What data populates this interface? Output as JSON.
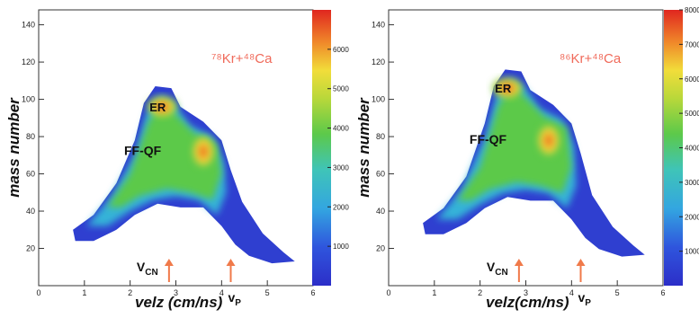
{
  "chart_data": [
    {
      "type": "heatmap",
      "reaction_label": "⁷⁸Kr+⁴⁸Ca",
      "xlabel": "velz (cm/ns)",
      "ylabel": "mass number",
      "xlim": [
        0,
        6
      ],
      "ylim": [
        0,
        148
      ],
      "x_ticks": [
        "0",
        "1",
        "2",
        "3",
        "4",
        "5",
        "6"
      ],
      "y_ticks": [
        "20",
        "40",
        "60",
        "80",
        "100",
        "120",
        "140"
      ],
      "colorbar_ticks": [
        "1000",
        "2000",
        "3000",
        "4000",
        "5000",
        "6000"
      ],
      "colorbar_max": 7000,
      "regions": [
        {
          "label": "ER",
          "x": 2.7,
          "y": 96,
          "peak": 7000
        },
        {
          "label": "FF-QF",
          "x": 3.6,
          "y": 72,
          "peak": 6200
        }
      ],
      "velocity_markers": [
        {
          "label": "V",
          "sub": "CN",
          "x": 2.85
        },
        {
          "label": "v",
          "sub": "P",
          "x": 4.2
        }
      ]
    },
    {
      "type": "heatmap",
      "reaction_label": "⁸⁶Kr+⁴⁸Ca",
      "xlabel": "velz(cm/ns)",
      "ylabel": "mass number",
      "xlim": [
        0,
        6
      ],
      "ylim": [
        0,
        148
      ],
      "x_ticks": [
        "0",
        "1",
        "2",
        "3",
        "4",
        "5",
        "6"
      ],
      "y_ticks": [
        "20",
        "40",
        "60",
        "80",
        "100",
        "120",
        "140"
      ],
      "colorbar_ticks": [
        "1000",
        "2000",
        "3000",
        "4000",
        "5000",
        "6000",
        "7000",
        "8000"
      ],
      "colorbar_max": 8000,
      "regions": [
        {
          "label": "ER",
          "x": 2.6,
          "y": 106,
          "peak": 7800
        },
        {
          "label": "FF-QF",
          "x": 3.5,
          "y": 78,
          "peak": 7000
        }
      ],
      "velocity_markers": [
        {
          "label": "V",
          "sub": "CN",
          "x": 2.85
        },
        {
          "label": "v",
          "sub": "P",
          "x": 4.2
        }
      ]
    }
  ]
}
